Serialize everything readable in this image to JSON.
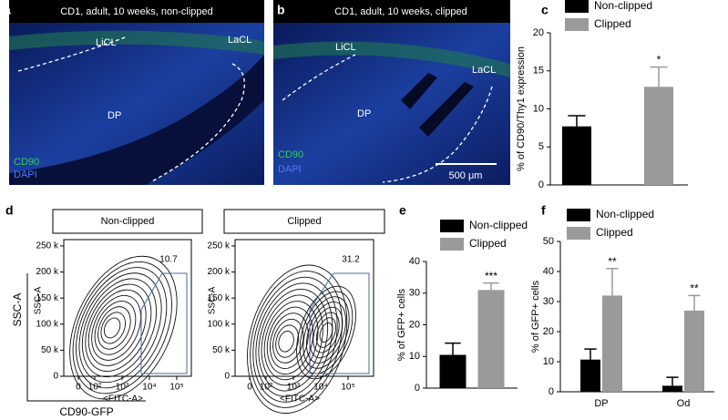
{
  "panel_labels": [
    "a",
    "b",
    "c",
    "d",
    "e",
    "f"
  ],
  "micrographs": [
    {
      "title": "CD1, adult, 10 weeks, non-clipped",
      "labels": [
        "LiCL",
        "LaCL",
        "DP"
      ],
      "stain_labels": [
        "CD90",
        "DAPI"
      ]
    },
    {
      "title": "CD1, adult, 10 weeks, clipped",
      "labels": [
        "LiCL",
        "LaCL",
        "DP"
      ],
      "stain_labels": [
        "CD90",
        "DAPI"
      ],
      "scale_bar": "500 μm"
    }
  ],
  "flow": {
    "y_axis_label": "SSC-A",
    "x_axis_label": "CD90-GFP",
    "plot_y_label": "SSC-A",
    "plot_x_label": "<FITC-A>",
    "ylim": [
      0,
      262144
    ],
    "yticks": [
      {
        "value": 0,
        "label": "0"
      },
      {
        "value": 50000,
        "label": "50 k"
      },
      {
        "value": 100000,
        "label": "100 k"
      },
      {
        "value": 150000,
        "label": "150 k"
      },
      {
        "value": 200000,
        "label": "200 k"
      },
      {
        "value": 250000,
        "label": "250 k"
      }
    ],
    "xticks": [
      {
        "value": 0,
        "label": "0"
      },
      {
        "value": 100,
        "label": "10²"
      },
      {
        "value": 1000,
        "label": "10³"
      },
      {
        "value": 10000,
        "label": "10⁴"
      },
      {
        "value": 100000,
        "label": "10⁵"
      }
    ],
    "plots": [
      {
        "title": "Non-clipped",
        "gate_percent": 10.7
      },
      {
        "title": "Clipped",
        "gate_percent": 31.2
      }
    ]
  },
  "chart_data": [
    {
      "type": "bar",
      "y_label": "% of CD90/Thy1 expression",
      "categories": [
        null
      ],
      "ylim": [
        0,
        20
      ],
      "yticks": [
        0,
        5,
        10,
        15,
        20
      ],
      "series": [
        {
          "name": "Non-clipped",
          "color": "#000000",
          "values": [
            7.7
          ],
          "errors": [
            1.4
          ]
        },
        {
          "name": "Clipped",
          "color": "#9a9a9a",
          "values": [
            12.9
          ],
          "errors": [
            2.6
          ],
          "significance": [
            "*"
          ]
        }
      ]
    },
    {
      "type": "bar",
      "y_label": "% of GFP+ cells",
      "categories": [
        null
      ],
      "ylim": [
        0,
        40
      ],
      "yticks": [
        0,
        10,
        20,
        30,
        40
      ],
      "series": [
        {
          "name": "Non-clipped",
          "color": "#000000",
          "values": [
            10.5
          ],
          "errors": [
            3.7
          ]
        },
        {
          "name": "Clipped",
          "color": "#9a9a9a",
          "values": [
            31
          ],
          "errors": [
            2.2
          ],
          "significance": [
            "***"
          ]
        }
      ]
    },
    {
      "type": "bar",
      "y_label": "% of GFP+ cells",
      "categories": [
        "DP",
        "Od"
      ],
      "ylim": [
        0,
        50
      ],
      "yticks": [
        0,
        10,
        20,
        30,
        40,
        50
      ],
      "series": [
        {
          "name": "Non-clipped",
          "color": "#000000",
          "values": [
            10.7,
            2
          ],
          "errors": [
            3.5,
            2.8
          ]
        },
        {
          "name": "Clipped",
          "color": "#9a9a9a",
          "values": [
            32,
            27
          ],
          "errors": [
            9,
            5
          ],
          "significance": [
            "**",
            "**"
          ]
        }
      ]
    }
  ]
}
